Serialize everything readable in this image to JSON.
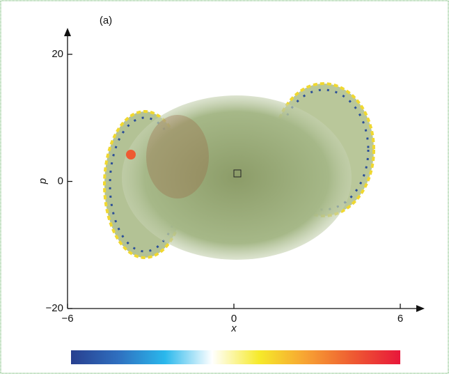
{
  "chart_data": {
    "type": "heatmap",
    "panel_label": "(a)",
    "x_label": "x",
    "y_label": "p",
    "xlim": [
      -6,
      6
    ],
    "ylim": [
      -20,
      20
    ],
    "xticks": [
      {
        "value": -6,
        "label": "−6"
      },
      0,
      6
    ],
    "yticks": [
      {
        "value": -20,
        "label": "−20"
      },
      0,
      20
    ],
    "colormap": [
      "#283f8f",
      "#2f6fbf",
      "#2ab8ec",
      "#ffffff",
      "#f6ea2a",
      "#f7a233",
      "#ee5a32",
      "#e8173a"
    ]
  }
}
